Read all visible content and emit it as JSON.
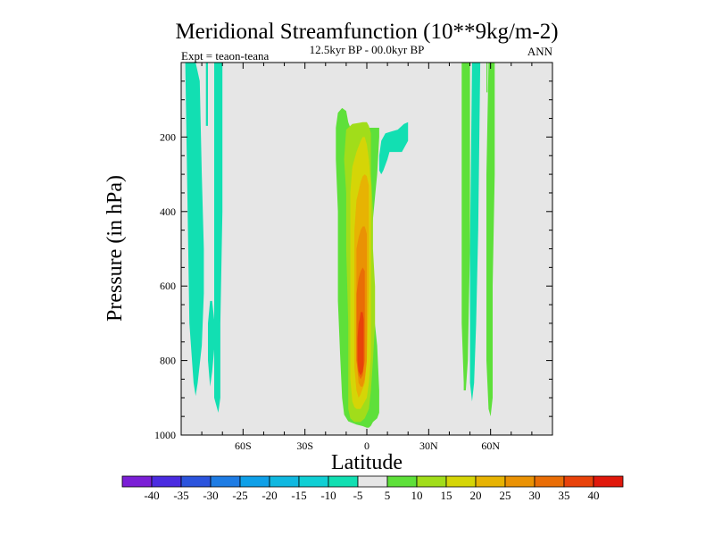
{
  "chart_data": {
    "type": "heatmap",
    "title": "Meridional Streamfunction (10**9kg/m-2)",
    "subtitle": "12.5kyr BP - 00.0kyr BP",
    "left_label": "Expt = teaon-teana",
    "right_label": "ANN",
    "xlabel": "Latitude",
    "ylabel": "Pressure (in hPa)",
    "xlim": [
      -90,
      90
    ],
    "ylim": [
      1000,
      0
    ],
    "x_ticks": [
      {
        "value": -60,
        "label": "60S"
      },
      {
        "value": -30,
        "label": "30S"
      },
      {
        "value": 0,
        "label": "0"
      },
      {
        "value": 30,
        "label": "30N"
      },
      {
        "value": 60,
        "label": "60N"
      }
    ],
    "y_ticks": [
      {
        "value": 200,
        "label": "200"
      },
      {
        "value": 400,
        "label": "400"
      },
      {
        "value": 600,
        "label": "600"
      },
      {
        "value": 800,
        "label": "800"
      },
      {
        "value": 1000,
        "label": "1000"
      }
    ],
    "background_color": "#e6e6e6",
    "colorbar": {
      "colors": [
        "#7b1fd6",
        "#4a2be0",
        "#2c54dd",
        "#1e7ce4",
        "#0fa0e8",
        "#10b8e0",
        "#10cfd4",
        "#12dfb2",
        "#e6e6e6",
        "#5ee03a",
        "#a1dd1a",
        "#d5d507",
        "#e7b303",
        "#ea9204",
        "#e96d06",
        "#e8420a",
        "#e0180c"
      ],
      "labels": [
        "-40",
        "-35",
        "-30",
        "-25",
        "-20",
        "-15",
        "-10",
        "-5",
        "5",
        "10",
        "15",
        "20",
        "25",
        "30",
        "35",
        "40"
      ]
    },
    "regions": [
      {
        "level": -10,
        "lat": [
          -88,
          -86,
          -83,
          -81,
          -80,
          -79,
          -79,
          -80,
          -82,
          -83,
          -84,
          -86,
          -88
        ],
        "p": [
          0,
          0,
          0,
          50,
          300,
          500,
          620,
          760,
          860,
          895,
          860,
          700,
          0
        ]
      },
      {
        "level": -10,
        "lat": [
          -78,
          -77,
          -77,
          -78
        ],
        "p": [
          0,
          0,
          170,
          170
        ]
      },
      {
        "level": -10,
        "lat": [
          -76,
          -75,
          -74,
          -74,
          -75,
          -76,
          -77,
          -77
        ],
        "p": [
          640,
          640,
          690,
          770,
          830,
          870,
          800,
          700
        ]
      },
      {
        "level": -10,
        "lat": [
          -74,
          -71,
          -70,
          -70,
          -71,
          -71,
          -72,
          -74,
          -74
        ],
        "p": [
          0,
          0,
          0,
          400,
          700,
          900,
          940,
          900,
          500
        ]
      },
      {
        "level": -10,
        "lat": [
          6,
          7,
          9,
          12,
          15,
          18,
          20,
          20,
          17,
          14,
          11,
          10,
          8,
          7,
          6,
          6
        ],
        "p": [
          250,
          210,
          190,
          185,
          180,
          165,
          160,
          210,
          240,
          240,
          240,
          260,
          290,
          300,
          290,
          260
        ]
      },
      {
        "level": -10,
        "lat": [
          51,
          53,
          55,
          54,
          53,
          52,
          51,
          50,
          50
        ],
        "p": [
          0,
          0,
          0,
          450,
          700,
          860,
          910,
          860,
          500
        ]
      },
      {
        "level": 5,
        "lat": [
          -14,
          -12,
          -10,
          -9,
          -8,
          -6,
          -4,
          -2,
          0,
          2,
          4,
          5,
          6,
          6,
          5,
          4,
          3,
          2,
          2,
          3,
          5,
          6,
          6,
          5,
          3,
          2,
          1,
          0,
          -2,
          -5,
          -9,
          -11,
          -12,
          -13,
          -14,
          -14,
          -15,
          -15
        ],
        "p": [
          135,
          122,
          130,
          160,
          175,
          175,
          175,
          175,
          175,
          175,
          175,
          175,
          175,
          200,
          300,
          360,
          420,
          480,
          560,
          650,
          760,
          880,
          940,
          955,
          965,
          975,
          980,
          980,
          976,
          972,
          963,
          945,
          900,
          780,
          640,
          400,
          260,
          175
        ]
      },
      {
        "level": 5,
        "lat": [
          59,
          61,
          62,
          62,
          61,
          61,
          61,
          61,
          60,
          59,
          58,
          58,
          58
        ],
        "p": [
          0,
          0,
          0,
          300,
          600,
          700,
          800,
          900,
          950,
          930,
          800,
          500,
          300
        ]
      },
      {
        "level": 5,
        "lat": [
          46,
          48,
          50,
          50,
          50,
          50,
          49,
          48,
          47,
          47,
          46,
          46
        ],
        "p": [
          0,
          0,
          0,
          70,
          200,
          500,
          800,
          880,
          880,
          860,
          700,
          300
        ]
      },
      {
        "level": 5,
        "lat": [
          58,
          58.5,
          58.5,
          58
        ],
        "p": [
          0,
          0,
          80,
          80
        ]
      },
      {
        "level": 10,
        "lat": [
          -10,
          -7,
          -4,
          -2,
          0,
          1,
          2,
          2,
          2,
          3,
          3,
          4,
          4,
          3,
          2,
          1,
          -1,
          -3,
          -6,
          -8,
          -9,
          -9,
          -9,
          -10,
          -10,
          -11
        ],
        "p": [
          180,
          165,
          162,
          160,
          160,
          170,
          190,
          230,
          300,
          400,
          500,
          600,
          700,
          800,
          880,
          930,
          955,
          965,
          965,
          955,
          930,
          850,
          700,
          500,
          350,
          260
        ]
      },
      {
        "level": 15,
        "lat": [
          -7,
          -5,
          -3,
          -2,
          -1,
          0,
          1,
          2,
          2,
          2,
          2,
          1,
          0,
          -2,
          -3,
          -5,
          -6,
          -7,
          -8,
          -8,
          -8,
          -8
        ],
        "p": [
          280,
          240,
          210,
          200,
          200,
          220,
          260,
          330,
          500,
          650,
          790,
          860,
          900,
          920,
          930,
          930,
          925,
          910,
          850,
          700,
          500,
          350
        ]
      },
      {
        "level": 20,
        "lat": [
          -5,
          -4,
          -3,
          -2,
          -1,
          0,
          1,
          1,
          1,
          0,
          -1,
          -3,
          -4,
          -5,
          -6,
          -6,
          -6,
          -6
        ],
        "p": [
          370,
          345,
          320,
          305,
          300,
          305,
          330,
          400,
          600,
          800,
          860,
          890,
          900,
          880,
          820,
          700,
          600,
          450
        ]
      },
      {
        "level": 25,
        "lat": [
          -5,
          -4,
          -3,
          -2,
          -1,
          0,
          0,
          0,
          -1,
          -2,
          -3,
          -4,
          -5,
          -5,
          -5
        ],
        "p": [
          500,
          470,
          450,
          440,
          440,
          460,
          500,
          800,
          850,
          870,
          870,
          860,
          800,
          700,
          600
        ]
      },
      {
        "level": 30,
        "lat": [
          -4,
          -3,
          -2,
          -1,
          -1,
          -1,
          -1,
          -2,
          -3,
          -4,
          -5,
          -5,
          -5
        ],
        "p": [
          580,
          560,
          550,
          560,
          600,
          700,
          800,
          840,
          850,
          840,
          800,
          700,
          620
        ]
      },
      {
        "level": 35,
        "lat": [
          -3.5,
          -3,
          -2,
          -1.5,
          -1.5,
          -1.5,
          -2,
          -3,
          -4,
          -4.5,
          -4.5,
          -4
        ],
        "p": [
          690,
          670,
          670,
          690,
          750,
          810,
          830,
          840,
          830,
          800,
          740,
          700
        ]
      }
    ]
  }
}
